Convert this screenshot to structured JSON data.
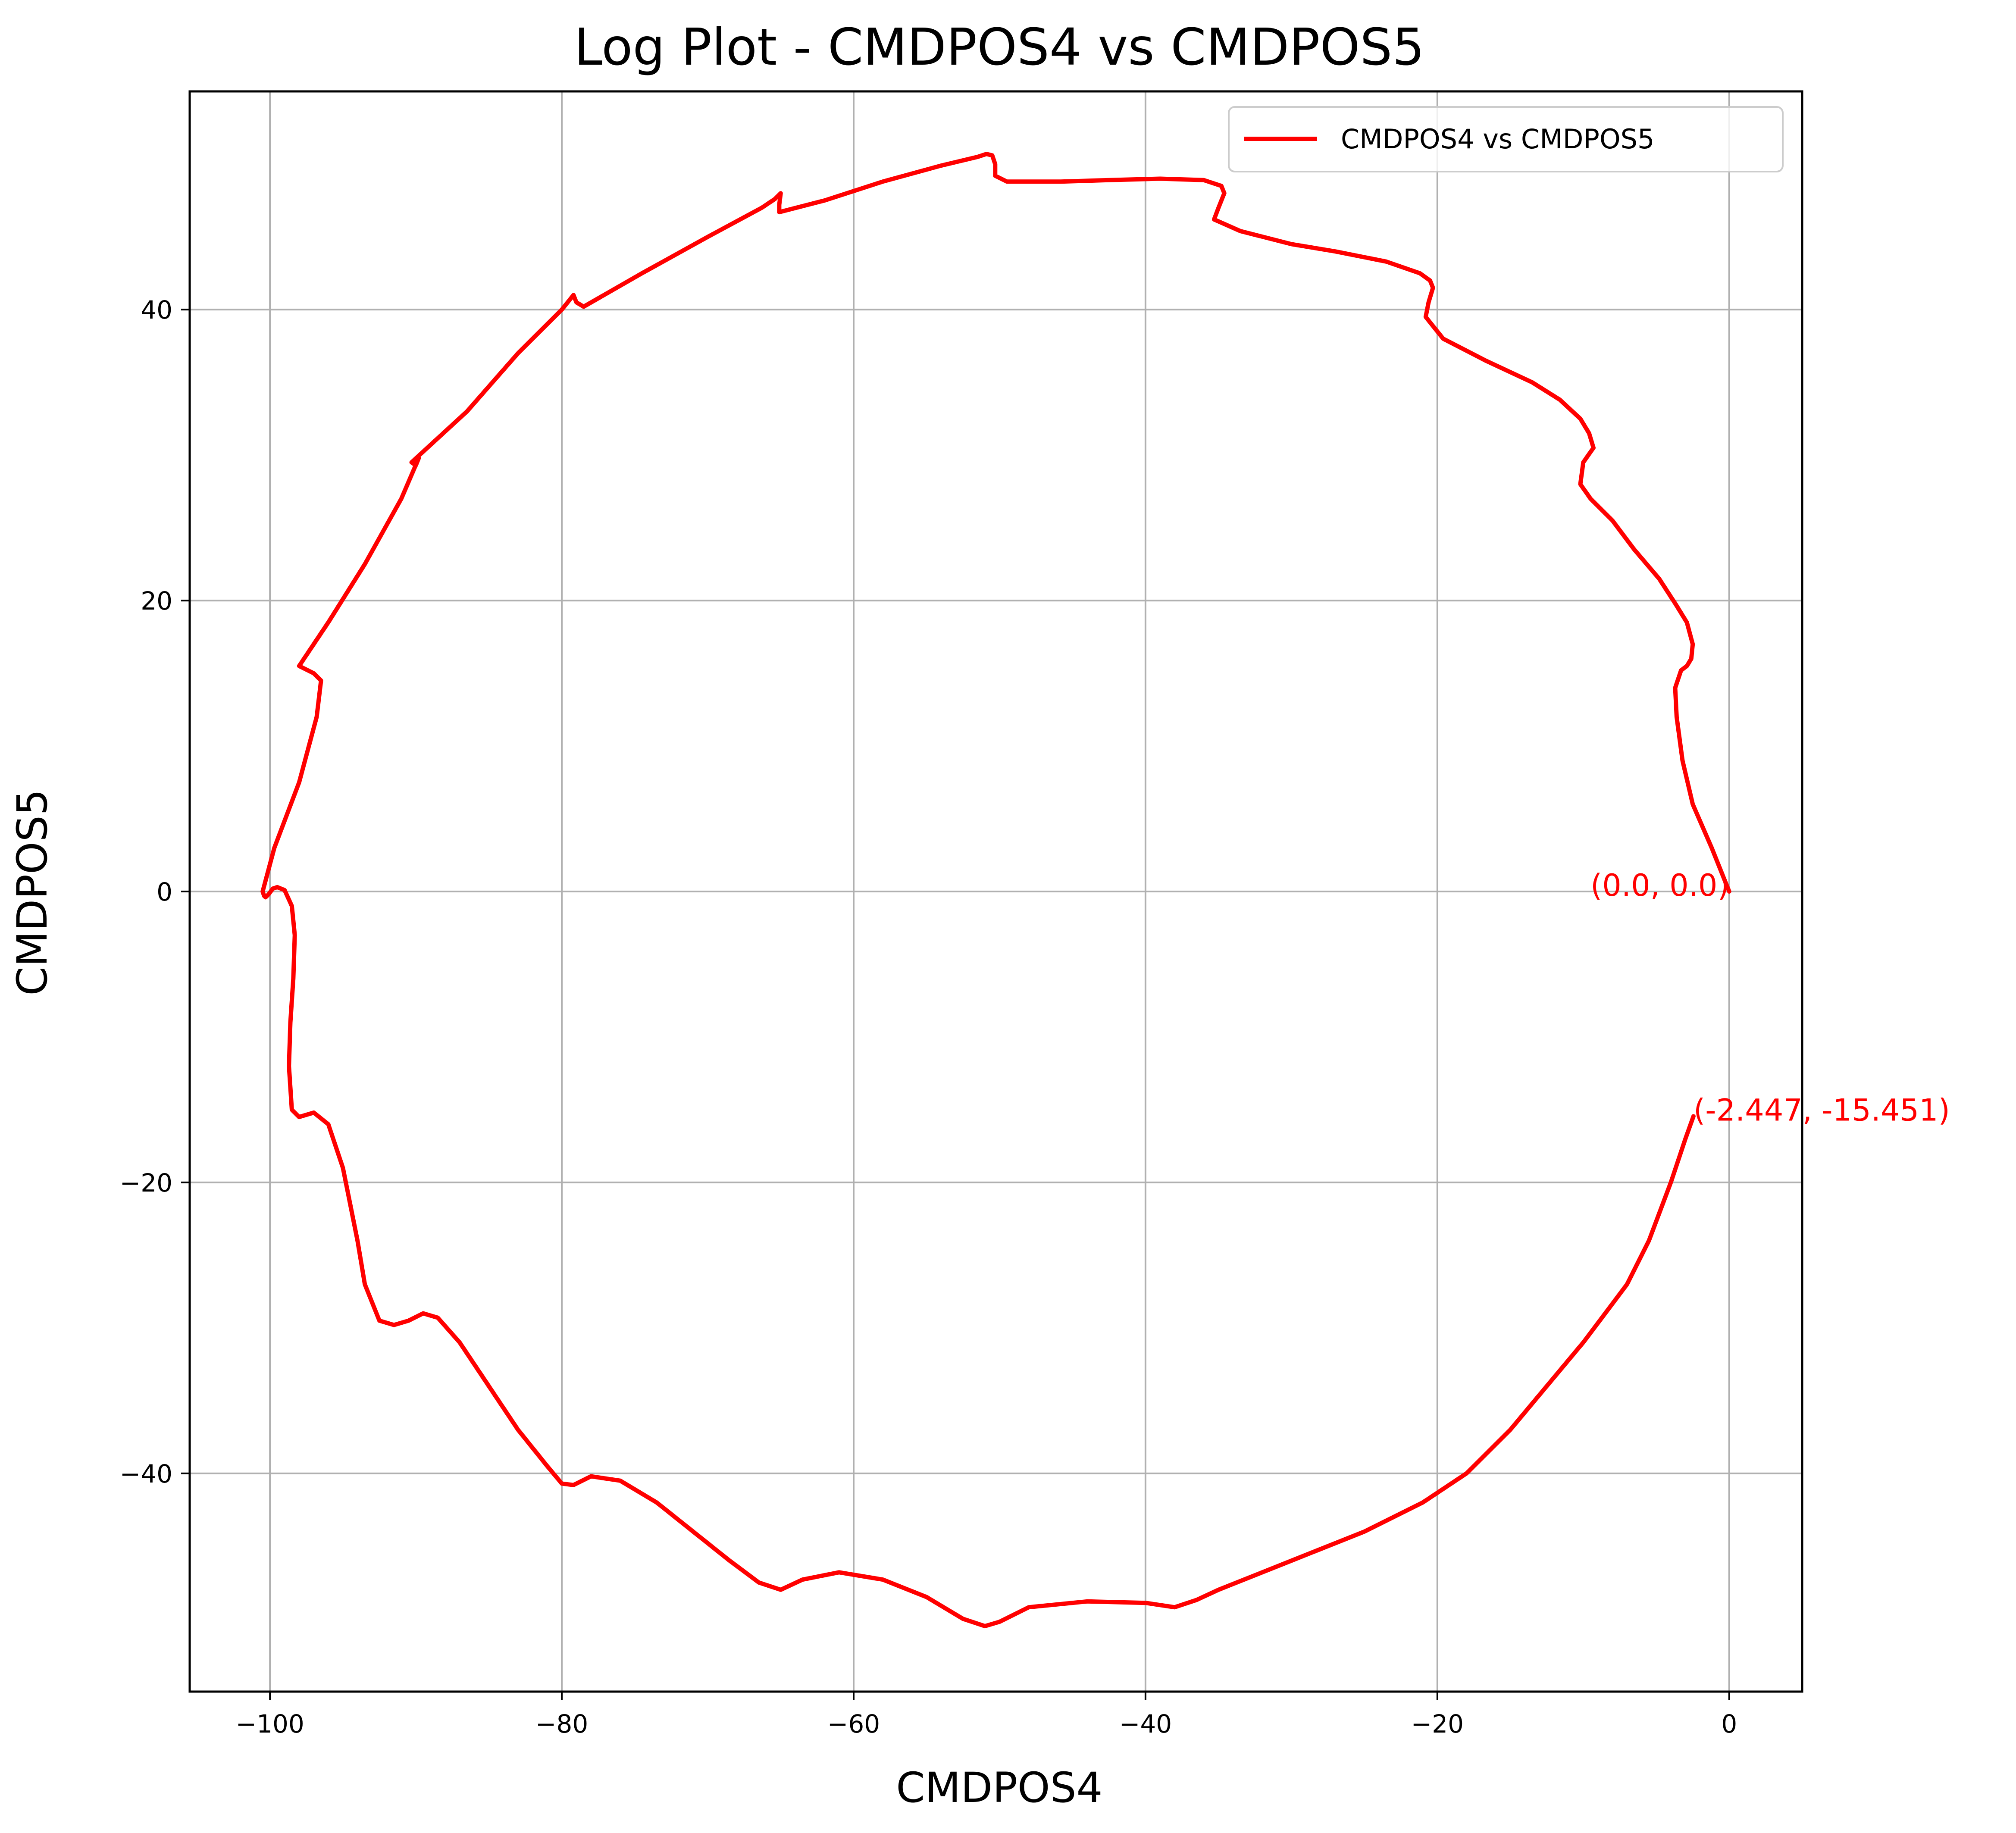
{
  "chart_data": {
    "type": "line",
    "title": "Log Plot - CMDPOS4 vs CMDPOS5",
    "xlabel": "CMDPOS4",
    "ylabel": "CMDPOS5",
    "xlim": [
      -105.5,
      5
    ],
    "ylim": [
      -55,
      55
    ],
    "x_ticks": [
      -100,
      -80,
      -60,
      -40,
      -20,
      0
    ],
    "x_tick_labels": [
      "−100",
      "−80",
      "−60",
      "−40",
      "−20",
      "0"
    ],
    "y_ticks": [
      -40,
      -20,
      0,
      20,
      40
    ],
    "y_tick_labels": [
      "−40",
      "−20",
      "0",
      "20",
      "40"
    ],
    "grid": true,
    "legend_position": "top-right",
    "colors": {
      "line": "#ff0000",
      "grid": "#b0b0b0",
      "axes": "#000000"
    },
    "series": [
      {
        "name": "CMDPOS4 vs CMDPOS5",
        "x": [
          0,
          -1.2,
          -2.5,
          -3.2,
          -3.6,
          -3.7,
          -3.3,
          -2.9,
          -2.6,
          -2.5,
          -2.9,
          -3.7,
          -4.8,
          -6.5,
          -8,
          -9.5,
          -10.2,
          -10,
          -9.3,
          -9.6,
          -10.2,
          -11.6,
          -13.5,
          -16.7,
          -19.6,
          -20.8,
          -20.6,
          -20.3,
          -20.5,
          -21.2,
          -23.5,
          -27,
          -30,
          -33.5,
          -35.3,
          -35,
          -34.6,
          -34.8,
          -36,
          -39,
          -42.5,
          -45.8,
          -49.5,
          -50.3,
          -50.3,
          -50.5,
          -50.9,
          -51.5,
          -54,
          -58,
          -62,
          -65.1,
          -65.1,
          -65,
          -65.4,
          -66.3,
          -70,
          -74.5,
          -78.5,
          -79,
          -79.2,
          -80,
          -83,
          -86.5,
          -90.3,
          -90,
          -89.8,
          -91,
          -93.5,
          -96,
          -98,
          -97,
          -96.5,
          -96.8,
          -98,
          -99.7,
          -100.5,
          -100.4,
          -100.3,
          -100.1,
          -99.8,
          -99.5,
          -99,
          -98.5,
          -98.3,
          -98.4,
          -98.6,
          -98.7,
          -98.5,
          -98,
          -97,
          -96,
          -95,
          -94,
          -93.5,
          -92.5,
          -91.5,
          -90.5,
          -89.5,
          -88.5,
          -87,
          -85,
          -83,
          -81,
          -80,
          -79.2,
          -78,
          -76,
          -73.5,
          -71,
          -68.5,
          -66.5,
          -65,
          -63.5,
          -61,
          -58,
          -55,
          -52.5,
          -51,
          -50,
          -48,
          -44,
          -40,
          -38,
          -36.5,
          -35,
          -30,
          -25,
          -21,
          -18,
          -15,
          -12.5,
          -10,
          -8.5,
          -7,
          -5.5,
          -4,
          -3,
          -2.447
        ],
        "y": [
          0,
          3,
          6,
          9,
          12,
          14,
          15.2,
          15.5,
          16,
          17,
          18.5,
          19.8,
          21.5,
          23.5,
          25.5,
          27,
          28,
          29.5,
          30.5,
          31.5,
          32.5,
          33.8,
          35,
          36.5,
          38,
          39.5,
          40.5,
          41.5,
          42,
          42.5,
          43.3,
          44,
          44.5,
          45.4,
          46.2,
          47,
          48,
          48.5,
          48.9,
          49,
          48.9,
          48.8,
          48.8,
          49.2,
          50,
          50.6,
          50.7,
          50.5,
          49.9,
          48.8,
          47.5,
          46.7,
          47.2,
          48,
          47.6,
          47,
          45,
          42.5,
          40.2,
          40.5,
          41,
          40,
          37,
          33,
          29.5,
          29.3,
          29.8,
          27,
          22.5,
          18.5,
          15.5,
          15,
          14.5,
          12,
          7.5,
          3,
          0,
          -0.3,
          -0.4,
          -0.2,
          0.2,
          0.3,
          0.1,
          -1,
          -3,
          -6,
          -9,
          -12,
          -15,
          -15.5,
          -15.2,
          -16,
          -19,
          -24,
          -27,
          -29.5,
          -29.8,
          -29.5,
          -29,
          -29.3,
          -31,
          -34,
          -37,
          -39.5,
          -40.7,
          -40.8,
          -40.2,
          -40.5,
          -42,
          -44,
          -46,
          -47.5,
          -48,
          -47.3,
          -46.8,
          -47.3,
          -48.5,
          -50,
          -50.5,
          -50.2,
          -49.2,
          -48.8,
          -48.9,
          -49.2,
          -48.7,
          -48,
          -46,
          -44,
          -42,
          -40,
          -37,
          -34,
          -31,
          -29,
          -27,
          -24,
          -20,
          -17,
          -15.451
        ]
      }
    ],
    "annotations": [
      {
        "text": "(0.0, 0.0)",
        "x": 0.0,
        "y": 0.0,
        "anchor": "end",
        "color": "#ff0000"
      },
      {
        "text": "(-2.447, -15.451)",
        "x": -2.447,
        "y": -15.451,
        "anchor": "start",
        "color": "#ff0000"
      }
    ]
  }
}
